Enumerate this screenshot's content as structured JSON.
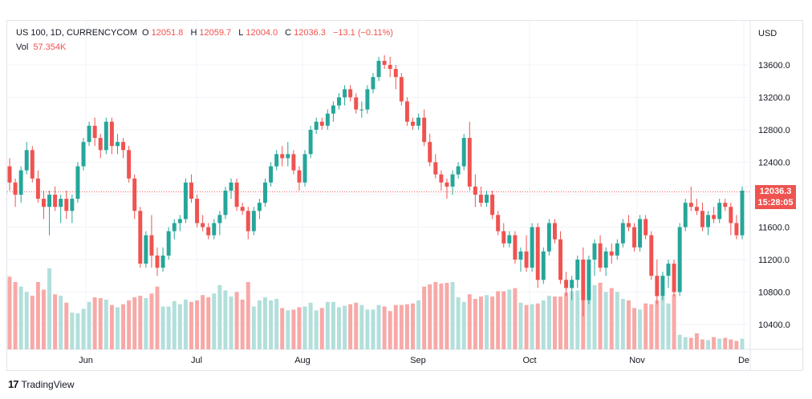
{
  "legend": {
    "symbol": "US 100, 1D, CURRENCYCOM",
    "open_label": "O",
    "open": "12051.8",
    "high_label": "H",
    "high": "12059.7",
    "low_label": "L",
    "low": "12004.0",
    "close_label": "C",
    "close": "12036.3",
    "change": "−13.1 (−0.11%)",
    "vol_label": "Vol",
    "vol": "57.354K"
  },
  "price_tag": {
    "price": "12036.3",
    "countdown": "15:28:05"
  },
  "brand": {
    "logo": "17",
    "name": "TradingView"
  },
  "colors": {
    "up": "#26a69a",
    "down": "#ef5350",
    "vol_up": "#b2dfdb",
    "vol_down": "#f7a9a7",
    "grid": "#f0f3fa",
    "border": "#e0e3eb"
  },
  "chart_data": {
    "type": "candlestick",
    "currency_label": "USD",
    "x_tick_labels": [
      "Jun",
      "Jul",
      "Aug",
      "Sep",
      "Oct",
      "Nov",
      "De"
    ],
    "y_tick_labels": [
      "13600.0",
      "13200.0",
      "12800.0",
      "12400.0",
      "12000.0",
      "11600.0",
      "11200.0",
      "10800.0",
      "10400.0"
    ],
    "y_ticks": [
      13600,
      13200,
      12800,
      12400,
      12000,
      11600,
      11200,
      10800,
      10400
    ],
    "ylim": [
      10100,
      13900
    ],
    "last_price": 12036.3,
    "candles": [
      [
        12350,
        12450,
        12050,
        12150,
        950
      ],
      [
        12150,
        12200,
        11850,
        12000,
        880
      ],
      [
        12000,
        12350,
        11900,
        12300,
        820
      ],
      [
        12300,
        12650,
        12250,
        12550,
        750
      ],
      [
        12550,
        12600,
        12150,
        12200,
        700
      ],
      [
        12200,
        12300,
        11900,
        11950,
        880
      ],
      [
        11950,
        12050,
        11700,
        11850,
        780
      ],
      [
        11850,
        12050,
        11500,
        12000,
        1060
      ],
      [
        12000,
        12100,
        11800,
        11850,
        720
      ],
      [
        11850,
        12000,
        11650,
        11950,
        700
      ],
      [
        11950,
        12050,
        11700,
        11800,
        610
      ],
      [
        11800,
        12000,
        11650,
        11950,
        480
      ],
      [
        11950,
        12400,
        11900,
        12350,
        470
      ],
      [
        12350,
        12700,
        12300,
        12650,
        530
      ],
      [
        12650,
        12900,
        12600,
        12850,
        620
      ],
      [
        12850,
        12950,
        12600,
        12700,
        680
      ],
      [
        12700,
        12750,
        12450,
        12550,
        670
      ],
      [
        12550,
        12950,
        12500,
        12900,
        650
      ],
      [
        12900,
        12950,
        12500,
        12600,
        580
      ],
      [
        12600,
        12750,
        12500,
        12650,
        550
      ],
      [
        12650,
        12700,
        12450,
        12550,
        590
      ],
      [
        12550,
        12600,
        12150,
        12200,
        640
      ],
      [
        12200,
        12250,
        11700,
        11800,
        680
      ],
      [
        11800,
        11850,
        11100,
        11150,
        700
      ],
      [
        11150,
        11550,
        11100,
        11500,
        670
      ],
      [
        11500,
        11750,
        11100,
        11250,
        730
      ],
      [
        11250,
        11350,
        11000,
        11100,
        820
      ],
      [
        11100,
        11350,
        11050,
        11250,
        560
      ],
      [
        11250,
        11600,
        11200,
        11550,
        560
      ],
      [
        11550,
        11700,
        11450,
        11650,
        630
      ],
      [
        11650,
        11750,
        11550,
        11700,
        590
      ],
      [
        11700,
        12200,
        11650,
        12150,
        650
      ],
      [
        12150,
        12250,
        11900,
        11950,
        620
      ],
      [
        11950,
        12000,
        11600,
        11650,
        640
      ],
      [
        11650,
        11750,
        11550,
        11600,
        710
      ],
      [
        11600,
        11650,
        11450,
        11500,
        680
      ],
      [
        11500,
        11700,
        11450,
        11650,
        730
      ],
      [
        11650,
        11800,
        11500,
        11750,
        840
      ],
      [
        11750,
        12100,
        11700,
        12050,
        770
      ],
      [
        12050,
        12200,
        11950,
        12150,
        690
      ],
      [
        12150,
        12200,
        11800,
        11850,
        750
      ],
      [
        11850,
        11900,
        11750,
        11800,
        650
      ],
      [
        11800,
        11850,
        11450,
        11550,
        880
      ],
      [
        11550,
        11850,
        11500,
        11800,
        560
      ],
      [
        11800,
        11950,
        11700,
        11900,
        640
      ],
      [
        11900,
        12200,
        11850,
        12150,
        680
      ],
      [
        12150,
        12400,
        12100,
        12350,
        640
      ],
      [
        12350,
        12550,
        12300,
        12500,
        660
      ],
      [
        12500,
        12600,
        12350,
        12450,
        540
      ],
      [
        12450,
        12650,
        12350,
        12500,
        510
      ],
      [
        12500,
        12550,
        12250,
        12300,
        520
      ],
      [
        12300,
        12350,
        12050,
        12150,
        550
      ],
      [
        12150,
        12550,
        12100,
        12500,
        560
      ],
      [
        12500,
        12850,
        12450,
        12800,
        610
      ],
      [
        12800,
        12950,
        12750,
        12900,
        510
      ],
      [
        12900,
        12950,
        12800,
        12850,
        540
      ],
      [
        12850,
        13050,
        12800,
        13000,
        620
      ],
      [
        13000,
        13150,
        12900,
        13100,
        620
      ],
      [
        13100,
        13250,
        13050,
        13200,
        550
      ],
      [
        13200,
        13350,
        13100,
        13300,
        570
      ],
      [
        13300,
        13350,
        13150,
        13200,
        590
      ],
      [
        13200,
        13250,
        13000,
        13050,
        610
      ],
      [
        13050,
        13150,
        12950,
        13050,
        580
      ],
      [
        13050,
        13350,
        13000,
        13300,
        520
      ],
      [
        13300,
        13500,
        13250,
        13450,
        520
      ],
      [
        13450,
        13700,
        13400,
        13650,
        580
      ],
      [
        13650,
        13720,
        13550,
        13600,
        560
      ],
      [
        13600,
        13700,
        13450,
        13550,
        500
      ],
      [
        13550,
        13600,
        13300,
        13450,
        580
      ],
      [
        13450,
        13500,
        13100,
        13150,
        580
      ],
      [
        13150,
        13200,
        12850,
        12900,
        590
      ],
      [
        12900,
        12950,
        12800,
        12850,
        600
      ],
      [
        12850,
        13000,
        12800,
        12950,
        640
      ],
      [
        12950,
        13050,
        12600,
        12650,
        820
      ],
      [
        12650,
        12750,
        12350,
        12400,
        850
      ],
      [
        12400,
        12500,
        12200,
        12250,
        880
      ],
      [
        12250,
        12300,
        12050,
        12150,
        860
      ],
      [
        12150,
        12200,
        11950,
        12100,
        870
      ],
      [
        12100,
        12300,
        12000,
        12250,
        880
      ],
      [
        12250,
        12400,
        12200,
        12350,
        680
      ],
      [
        12350,
        12750,
        12300,
        12700,
        620
      ],
      [
        12700,
        12900,
        12050,
        12100,
        720
      ],
      [
        12100,
        12250,
        11850,
        12000,
        660
      ],
      [
        12000,
        12100,
        11850,
        11900,
        690
      ],
      [
        11900,
        12050,
        11850,
        12000,
        710
      ],
      [
        12000,
        12050,
        11700,
        11750,
        690
      ],
      [
        11750,
        11800,
        11500,
        11550,
        760
      ],
      [
        11550,
        11650,
        11350,
        11400,
        760
      ],
      [
        11400,
        11550,
        11350,
        11500,
        780
      ],
      [
        11500,
        11550,
        11150,
        11200,
        800
      ],
      [
        11200,
        11350,
        11050,
        11300,
        610
      ],
      [
        11300,
        11500,
        11050,
        11100,
        580
      ],
      [
        11100,
        11650,
        11050,
        11600,
        590
      ],
      [
        11600,
        11650,
        10850,
        10950,
        600
      ],
      [
        10950,
        11350,
        10900,
        11300,
        640
      ],
      [
        11300,
        11700,
        11250,
        11650,
        700
      ],
      [
        11650,
        11700,
        11400,
        11450,
        690
      ],
      [
        11450,
        11550,
        10900,
        10950,
        690
      ],
      [
        10950,
        11050,
        10750,
        10850,
        740
      ],
      [
        10850,
        11000,
        10700,
        10950,
        760
      ],
      [
        10950,
        11250,
        10850,
        11200,
        770
      ],
      [
        11200,
        11350,
        10500,
        10700,
        780
      ],
      [
        10700,
        11250,
        10650,
        11200,
        760
      ],
      [
        11200,
        11450,
        11000,
        11400,
        840
      ],
      [
        11400,
        11500,
        11050,
        11100,
        870
      ],
      [
        11100,
        11350,
        11000,
        11300,
        750
      ],
      [
        11300,
        11400,
        11150,
        11250,
        800
      ],
      [
        11250,
        11450,
        11200,
        11400,
        750
      ],
      [
        11400,
        11700,
        11350,
        11650,
        660
      ],
      [
        11650,
        11750,
        11550,
        11600,
        640
      ],
      [
        11600,
        11650,
        11300,
        11350,
        540
      ],
      [
        11350,
        11750,
        11300,
        11700,
        520
      ],
      [
        11700,
        11750,
        11450,
        11500,
        600
      ],
      [
        11500,
        11550,
        10950,
        11000,
        590
      ],
      [
        11000,
        11200,
        10650,
        10750,
        640
      ],
      [
        10750,
        11050,
        10700,
        11000,
        690
      ],
      [
        11000,
        11200,
        10850,
        11150,
        600
      ],
      [
        11150,
        11200,
        10750,
        10800,
        720
      ],
      [
        10800,
        11650,
        10750,
        11600,
        190
      ],
      [
        11600,
        11950,
        11550,
        11900,
        160
      ],
      [
        11900,
        12100,
        11800,
        11850,
        150
      ],
      [
        11850,
        11950,
        11750,
        11800,
        210
      ],
      [
        11800,
        11900,
        11550,
        11600,
        130
      ],
      [
        11600,
        11800,
        11500,
        11750,
        120
      ],
      [
        11750,
        11850,
        11650,
        11700,
        160
      ],
      [
        11700,
        11950,
        11650,
        11900,
        140
      ],
      [
        11900,
        11950,
        11800,
        11850,
        150
      ],
      [
        11850,
        11900,
        11500,
        11650,
        130
      ],
      [
        11650,
        11750,
        11450,
        11500,
        110
      ],
      [
        11500,
        12100,
        11450,
        12050,
        140
      ]
    ]
  }
}
